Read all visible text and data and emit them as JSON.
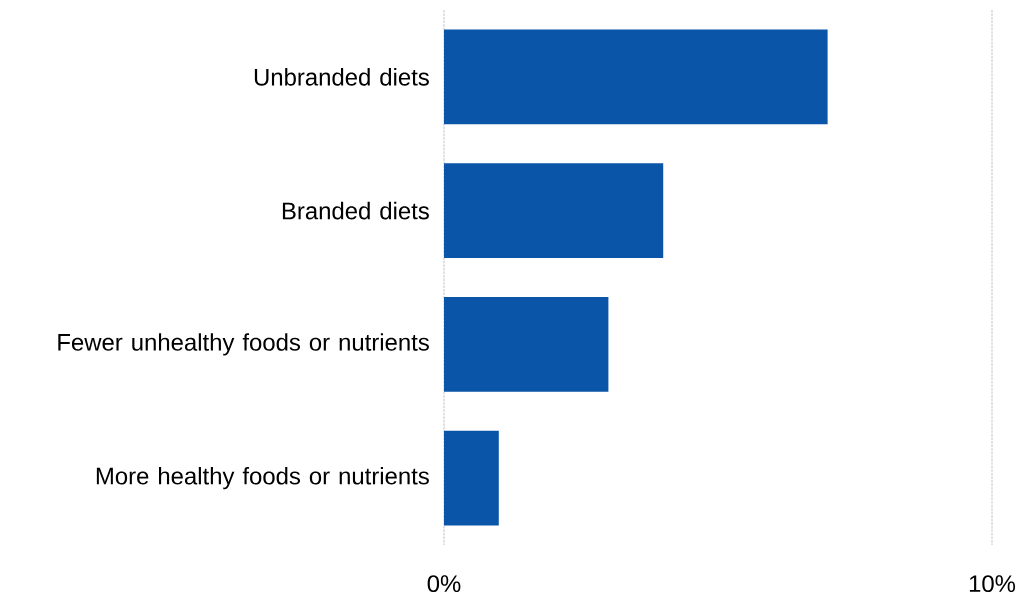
{
  "chart_data": {
    "type": "bar",
    "orientation": "horizontal",
    "categories": [
      "Unbranded diets",
      "Branded diets",
      "Fewer unhealthy foods or nutrients",
      "More healthy foods or nutrients"
    ],
    "values": [
      7.0,
      4.0,
      3.0,
      1.0
    ],
    "color": "#0a55a8",
    "xlim": [
      0,
      10
    ],
    "xticks": [
      {
        "value": 0,
        "label": "0%"
      },
      {
        "value": 10,
        "label": "10%"
      }
    ],
    "grid": "x"
  }
}
